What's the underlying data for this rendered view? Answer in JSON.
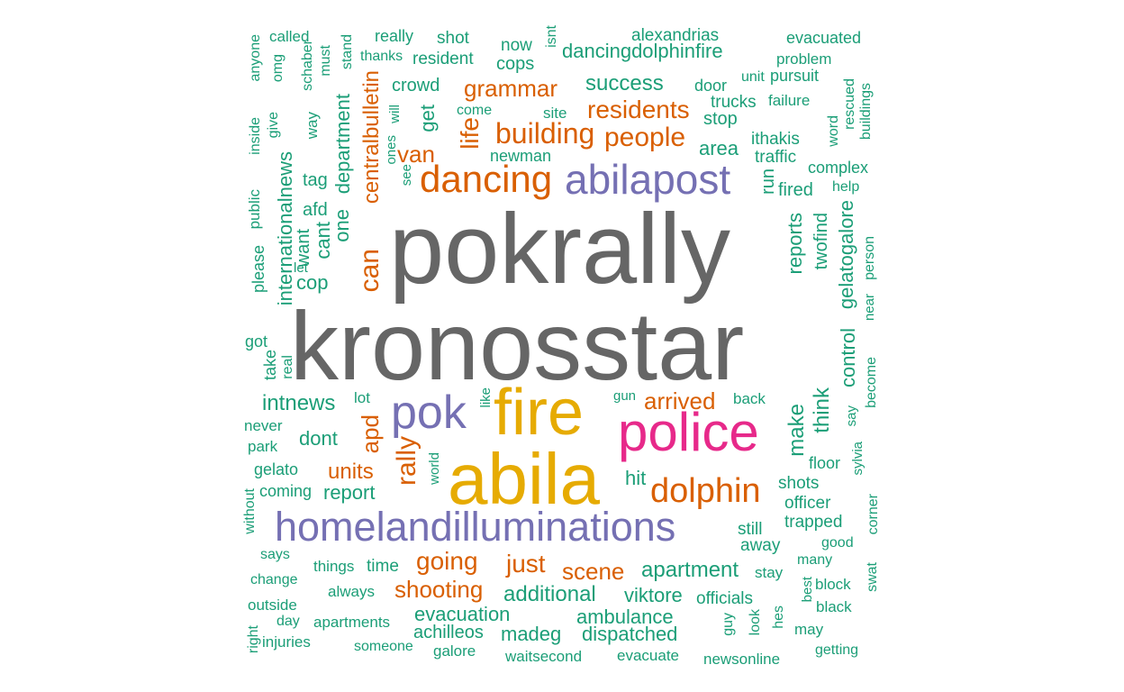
{
  "palette": {
    "teal": "#1b9e77",
    "orange": "#d95f02",
    "purple": "#7570b3",
    "magenta": "#e7298a",
    "gold": "#e6ab02",
    "gray": "#666666"
  },
  "words": [
    "pokrally",
    "kronosstar",
    "fire",
    "abila",
    "police",
    "homelandilluminations",
    "abilapost",
    "pok",
    "dancing",
    "dolphin",
    "building",
    "people",
    "residents",
    "grammar",
    "can",
    "rally",
    "van",
    "life",
    "apd",
    "units",
    "going",
    "just",
    "scene",
    "shooting",
    "success",
    "dancingdolphinfire",
    "centralbulletin",
    "department",
    "reports",
    "gelatogalore",
    "intnews",
    "arrived",
    "make",
    "think",
    "control",
    "additional",
    "apartment",
    "viktore",
    "ambulance",
    "evacuation",
    "dispatched",
    "achilleos",
    "madeg",
    "report",
    "dont",
    "get",
    "cops",
    "crowd",
    "stop",
    "area",
    "traffic",
    "complex",
    "fired",
    "run",
    "twofind",
    "internationalnews",
    "one",
    "cant",
    "want",
    "afd",
    "cop",
    "tag",
    "called",
    "shot",
    "really",
    "now",
    "isnt",
    "alexandrias",
    "evacuated",
    "resident",
    "problem",
    "thanks",
    "door",
    "unit",
    "pursuit",
    "trucks",
    "failure",
    "ithakis",
    "word",
    "buildings",
    "rescued",
    "help",
    "anyone",
    "omg",
    "schaber",
    "must",
    "stand",
    "way",
    "give",
    "inside",
    "ones",
    "will",
    "see",
    "site",
    "come",
    "newman",
    "public",
    "please",
    "let",
    "got",
    "take",
    "real",
    "lot",
    "like",
    "gun",
    "back",
    "never",
    "park",
    "gelato",
    "world",
    "coming",
    "without",
    "says",
    "change",
    "outside",
    "right",
    "day",
    "injuries",
    "apartments",
    "always",
    "things",
    "time",
    "someone",
    "galore",
    "waitsecond",
    "evacuate",
    "newsonline",
    "getting",
    "may",
    "hes",
    "look",
    "guy",
    "officials",
    "stay",
    "best",
    "block",
    "black",
    "many",
    "good",
    "corner",
    "swat",
    "officer",
    "trapped",
    "still",
    "away",
    "shots",
    "floor",
    "sylvia",
    "hit",
    "say",
    "become",
    "near",
    "person"
  ]
}
